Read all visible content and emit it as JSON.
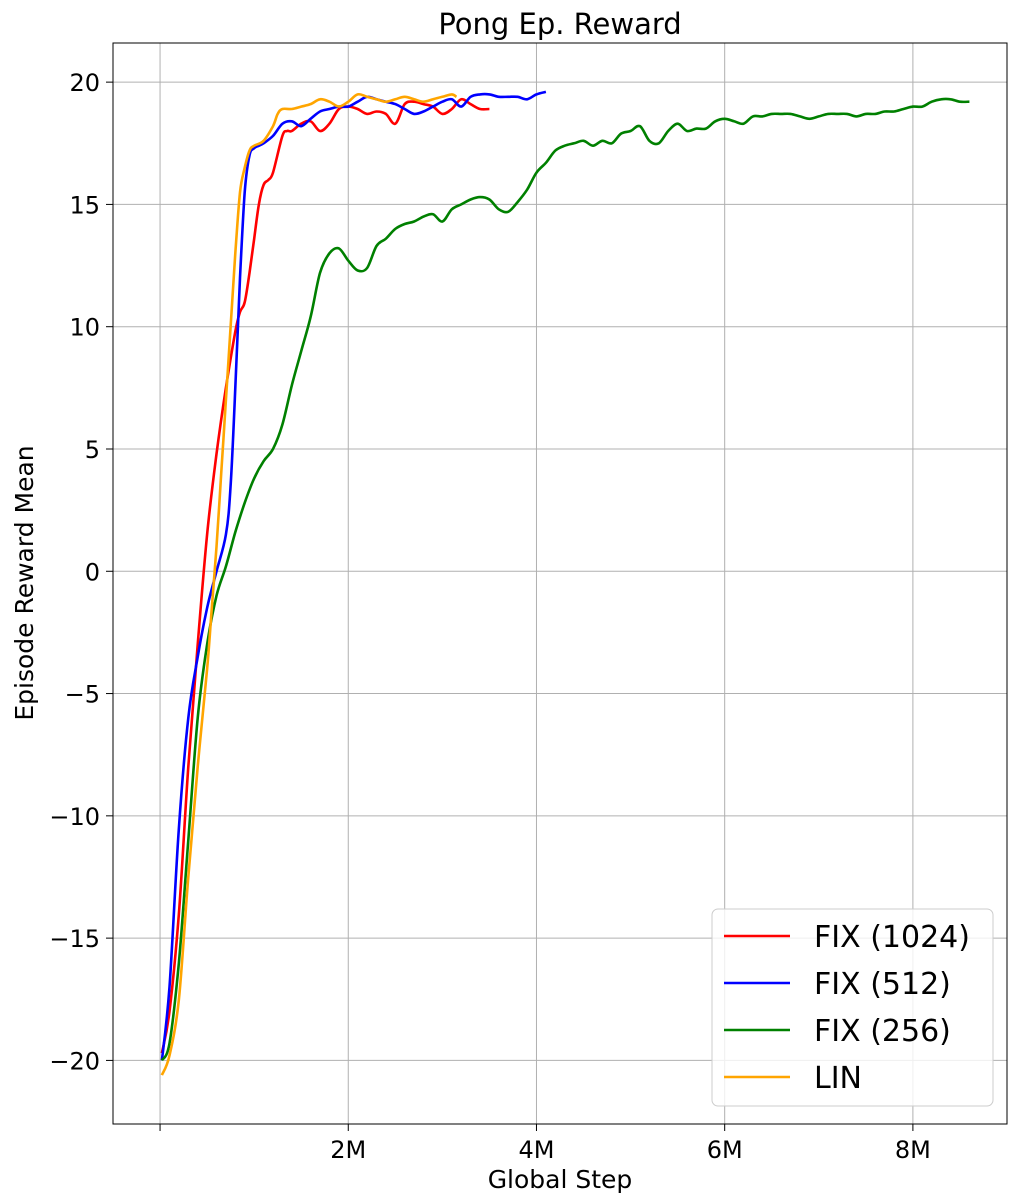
{
  "chart_data": {
    "type": "line",
    "title": "Pong Ep. Reward",
    "xlabel": "Global Step",
    "ylabel": "Episode Reward Mean",
    "xlim": [
      -500000,
      9000000
    ],
    "ylim": [
      -22.6,
      21.6
    ],
    "x_ticks": [
      0,
      2000000,
      4000000,
      6000000,
      8000000
    ],
    "x_tick_labels": [
      "",
      "2M",
      "4M",
      "6M",
      "8M"
    ],
    "y_ticks": [
      -20,
      -15,
      -10,
      -5,
      0,
      5,
      10,
      15,
      20
    ],
    "y_tick_labels": [
      "−20",
      "−15",
      "−10",
      "−5",
      "0",
      "5",
      "10",
      "15",
      "20"
    ],
    "grid": true,
    "legend_position": "lower-right",
    "series": [
      {
        "name": "FIX (1024)",
        "color": "#ff0000",
        "x": [
          20000,
          100000,
          200000,
          300000,
          400000,
          500000,
          600000,
          700000,
          800000,
          850000,
          900000,
          950000,
          1000000,
          1050000,
          1100000,
          1150000,
          1200000,
          1300000,
          1350000,
          1400000,
          1500000,
          1600000,
          1700000,
          1800000,
          1900000,
          2000000,
          2100000,
          2200000,
          2300000,
          2400000,
          2500000,
          2600000,
          2700000,
          2800000,
          2900000,
          3000000,
          3100000,
          3200000,
          3300000,
          3400000,
          3500000
        ],
        "values": [
          -19.7,
          -18.0,
          -14.0,
          -8.0,
          -3.0,
          1.5,
          4.8,
          7.5,
          9.8,
          10.6,
          11.0,
          12.2,
          13.6,
          15.0,
          15.8,
          16.0,
          16.3,
          17.8,
          18.0,
          18.0,
          18.3,
          18.4,
          18.0,
          18.3,
          18.9,
          19.0,
          18.9,
          18.7,
          18.8,
          18.7,
          18.3,
          19.1,
          19.2,
          19.1,
          19.0,
          18.7,
          18.9,
          19.3,
          19.1,
          18.9,
          18.9
        ]
      },
      {
        "name": "FIX (512)",
        "color": "#0000ff",
        "x": [
          20000,
          100000,
          200000,
          300000,
          400000,
          500000,
          600000,
          700000,
          750000,
          800000,
          850000,
          900000,
          950000,
          1000000,
          1050000,
          1100000,
          1200000,
          1300000,
          1400000,
          1500000,
          1600000,
          1700000,
          1800000,
          1900000,
          2000000,
          2100000,
          2200000,
          2300000,
          2400000,
          2500000,
          2600000,
          2700000,
          2800000,
          2900000,
          3000000,
          3100000,
          3200000,
          3300000,
          3400000,
          3500000,
          3600000,
          3700000,
          3800000,
          3900000,
          4000000,
          4100000
        ],
        "values": [
          -20.0,
          -17.0,
          -10.5,
          -6.0,
          -3.5,
          -1.5,
          0.0,
          1.5,
          3.5,
          7.5,
          12.0,
          15.5,
          17.0,
          17.3,
          17.4,
          17.5,
          17.8,
          18.3,
          18.4,
          18.2,
          18.5,
          18.8,
          18.9,
          19.0,
          19.0,
          19.2,
          19.4,
          19.3,
          19.2,
          19.1,
          18.9,
          18.7,
          18.8,
          19.0,
          19.2,
          19.3,
          19.0,
          19.4,
          19.5,
          19.5,
          19.4,
          19.4,
          19.4,
          19.3,
          19.5,
          19.6
        ]
      },
      {
        "name": "FIX (256)",
        "color": "#008000",
        "x": [
          20000,
          100000,
          200000,
          300000,
          400000,
          500000,
          600000,
          700000,
          800000,
          900000,
          1000000,
          1100000,
          1200000,
          1300000,
          1400000,
          1500000,
          1600000,
          1700000,
          1800000,
          1900000,
          2000000,
          2100000,
          2200000,
          2300000,
          2400000,
          2500000,
          2600000,
          2700000,
          2800000,
          2900000,
          3000000,
          3100000,
          3200000,
          3300000,
          3400000,
          3500000,
          3600000,
          3700000,
          3800000,
          3900000,
          4000000,
          4100000,
          4200000,
          4300000,
          4400000,
          4500000,
          4600000,
          4700000,
          4800000,
          4900000,
          5000000,
          5100000,
          5200000,
          5300000,
          5400000,
          5500000,
          5600000,
          5700000,
          5800000,
          5900000,
          6000000,
          6100000,
          6200000,
          6300000,
          6400000,
          6500000,
          6600000,
          6700000,
          6800000,
          6900000,
          7000000,
          7100000,
          7200000,
          7300000,
          7400000,
          7500000,
          7600000,
          7700000,
          7800000,
          7900000,
          8000000,
          8100000,
          8200000,
          8300000,
          8400000,
          8500000,
          8600000
        ],
        "values": [
          -20.0,
          -19.3,
          -16.0,
          -11.0,
          -6.0,
          -3.0,
          -1.0,
          0.2,
          1.6,
          2.8,
          3.8,
          4.5,
          5.0,
          6.0,
          7.6,
          9.0,
          10.4,
          12.2,
          13.0,
          13.2,
          12.7,
          12.3,
          12.4,
          13.3,
          13.6,
          14.0,
          14.2,
          14.3,
          14.5,
          14.6,
          14.3,
          14.8,
          15.0,
          15.2,
          15.3,
          15.2,
          14.8,
          14.7,
          15.1,
          15.6,
          16.3,
          16.7,
          17.2,
          17.4,
          17.5,
          17.6,
          17.4,
          17.6,
          17.5,
          17.9,
          18.0,
          18.2,
          17.6,
          17.5,
          18.0,
          18.3,
          18.0,
          18.1,
          18.1,
          18.4,
          18.5,
          18.4,
          18.3,
          18.6,
          18.6,
          18.7,
          18.7,
          18.7,
          18.6,
          18.5,
          18.6,
          18.7,
          18.7,
          18.7,
          18.6,
          18.7,
          18.7,
          18.8,
          18.8,
          18.9,
          19.0,
          19.0,
          19.2,
          19.3,
          19.3,
          19.2,
          19.2
        ]
      },
      {
        "name": "LIN",
        "color": "#ffa500",
        "x": [
          20000,
          100000,
          200000,
          300000,
          400000,
          500000,
          550000,
          600000,
          650000,
          700000,
          750000,
          800000,
          850000,
          900000,
          950000,
          1000000,
          1100000,
          1200000,
          1250000,
          1300000,
          1400000,
          1500000,
          1600000,
          1700000,
          1800000,
          1900000,
          2000000,
          2100000,
          2200000,
          2300000,
          2400000,
          2500000,
          2600000,
          2700000,
          2800000,
          2900000,
          3000000,
          3100000,
          3150000
        ],
        "values": [
          -20.6,
          -19.8,
          -17.5,
          -12.5,
          -8.0,
          -4.0,
          -1.5,
          1.0,
          4.0,
          7.0,
          10.0,
          13.0,
          15.5,
          16.5,
          17.2,
          17.4,
          17.6,
          18.2,
          18.7,
          18.9,
          18.9,
          19.0,
          19.1,
          19.3,
          19.2,
          19.0,
          19.2,
          19.5,
          19.4,
          19.3,
          19.2,
          19.3,
          19.4,
          19.3,
          19.2,
          19.3,
          19.4,
          19.5,
          19.4
        ]
      }
    ]
  }
}
